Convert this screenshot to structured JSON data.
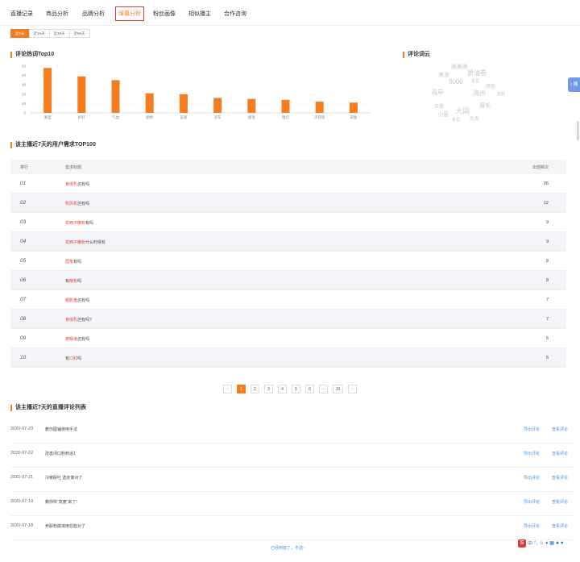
{
  "nav": {
    "tabs": [
      "直播记录",
      "商品分析",
      "品牌分析",
      "弹幕分析",
      "粉丝画像",
      "相似播主",
      "合作咨询"
    ],
    "active_index": 3
  },
  "periods": {
    "options": [
      "近7天",
      "近15天",
      "近30天",
      "近90天"
    ],
    "active_index": 0
  },
  "hotwords": {
    "title": "评论热词Top10",
    "chart_data": {
      "type": "bar",
      "categories": [
        "发型",
        "好好",
        "气血",
        "颜色",
        "美发",
        "买车",
        "眉毛",
        "咱们",
        "声音很",
        "皮肤"
      ],
      "values": [
        48,
        39,
        35,
        21,
        20,
        16,
        15,
        14,
        12,
        11
      ],
      "yticks": [
        "0",
        "10",
        "20",
        "30",
        "40",
        "50"
      ],
      "ylim": [
        0,
        50
      ],
      "bar_color": "#f57c1f"
    }
  },
  "wordcloud": {
    "title": "评论词云",
    "words": [
      "美发",
      "美美美",
      "黄油卷",
      "发型",
      "8000",
      "颜色",
      "眉毛",
      "海岸",
      "海州",
      "大同",
      "小辰",
      "米豆",
      "买新",
      "头发",
      "皮肤"
    ]
  },
  "demands": {
    "title": "该主播近7天的用户需求TOP100",
    "headers": {
      "rank": "排行",
      "demand": "需求标题",
      "count": "出现频次"
    },
    "rows": [
      {
        "rank": "01",
        "keyword": "身体乳",
        "rest": "还有吗",
        "count": "26"
      },
      {
        "rank": "02",
        "keyword": "吹风机",
        "rest": "还有吗",
        "count": "12"
      },
      {
        "rank": "03",
        "keyword": "花西子散粉",
        "rest": "有吗",
        "count": "9"
      },
      {
        "rank": "04",
        "keyword": "花西子散粉",
        "rest": "什么时候有",
        "count": "9"
      },
      {
        "rank": "05",
        "keyword": "眉笔",
        "rest": "有吗",
        "count": "8"
      },
      {
        "rank": "06",
        "prefix": "有",
        "keyword": "散粉",
        "rest": "吗",
        "count": "8"
      },
      {
        "rank": "07",
        "keyword": "眼影盘",
        "rest": "还有吗",
        "count": "7"
      },
      {
        "rank": "08",
        "keyword": "身体乳",
        "rest": "还有吗?",
        "count": "7"
      },
      {
        "rank": "09",
        "keyword": "遮瑕液",
        "rest": "还有吗",
        "count": "6"
      },
      {
        "rank": "10",
        "prefix": "有",
        "keyword": "口红",
        "rest": "吗",
        "count": "6"
      }
    ]
  },
  "pagination": {
    "prev": "‹",
    "pages": [
      "1",
      "2",
      "3",
      "4",
      "5",
      "6",
      "···",
      "10"
    ],
    "active_index": 0,
    "next": "›"
  },
  "lives": {
    "title": "该主播近7天的直播评论列表",
    "rows": [
      {
        "date": "2020-07-23",
        "title": "教你图铺使用手法"
      },
      {
        "date": "2020-07-22",
        "title": "改善闭口粉刺话1"
      },
      {
        "date": "2020-07-21",
        "title": "冷暖肤吐 选定做对了"
      },
      {
        "date": "2020-07-19",
        "title": "教你吹“发蓬”来了!"
      },
      {
        "date": "2020-07-18",
        "title": "养肤粉底液用在脸对了"
      }
    ],
    "action1": "导出评论",
    "action2": "查看评论"
  },
  "footer": {
    "link": "已经到底了，不送~"
  },
  "side_tab": "‹ 展",
  "ime": {
    "logo": "S",
    "labels": [
      "中",
      "°,",
      "☺",
      "♦",
      "▦",
      "♣",
      "♥"
    ]
  }
}
